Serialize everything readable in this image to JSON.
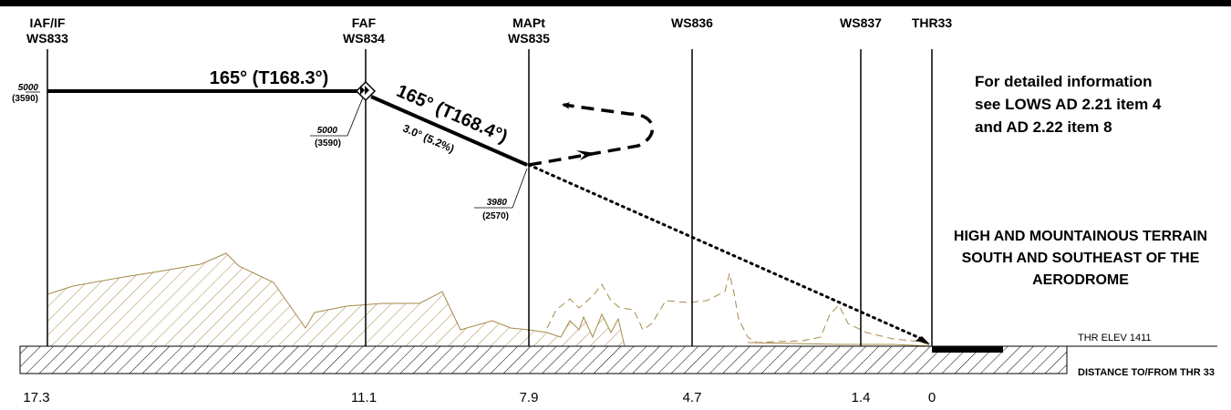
{
  "fixes": [
    {
      "id": "iaf",
      "line1": "IAF/IF",
      "line2": "WS833",
      "distance": "17.3"
    },
    {
      "id": "faf",
      "line1": "FAF",
      "line2": "WS834",
      "distance": "11.1"
    },
    {
      "id": "mapt",
      "line1": "MAPt",
      "line2": "WS835",
      "distance": "7.9"
    },
    {
      "id": "ws836",
      "line1": "",
      "line2": "WS836",
      "distance": "4.7"
    },
    {
      "id": "ws837",
      "line1": "",
      "line2": "WS837",
      "distance": "1.4"
    },
    {
      "id": "thr33",
      "line1": "",
      "line2": "THR33",
      "distance": "0"
    }
  ],
  "courses": {
    "initial": "165° (T168.3°)",
    "final": "165° (T168.4°)",
    "glidepath": "3.0° (5.2%)"
  },
  "altitudes": {
    "iaf": {
      "alt": "5000",
      "height": "(3590)"
    },
    "faf": {
      "alt": "5000",
      "height": "(3590)"
    },
    "mapt": {
      "alt": "3980",
      "height": "(2570)"
    }
  },
  "note": {
    "line1": "For detailed information",
    "line2": "see LOWS AD 2.21 item 4",
    "line3": "and AD 2.22 item 8"
  },
  "terrain_note": {
    "line1": "HIGH AND MOUNTAINOUS TERRAIN",
    "line2": "SOUTH AND SOUTHEAST OF THE",
    "line3": "AERODROME"
  },
  "threshold_elevation": "THR ELEV 1411",
  "distance_label": "DISTANCE TO/FROM THR 33",
  "colors": {
    "terrain": "#a68a4a",
    "ink": "#000000"
  }
}
